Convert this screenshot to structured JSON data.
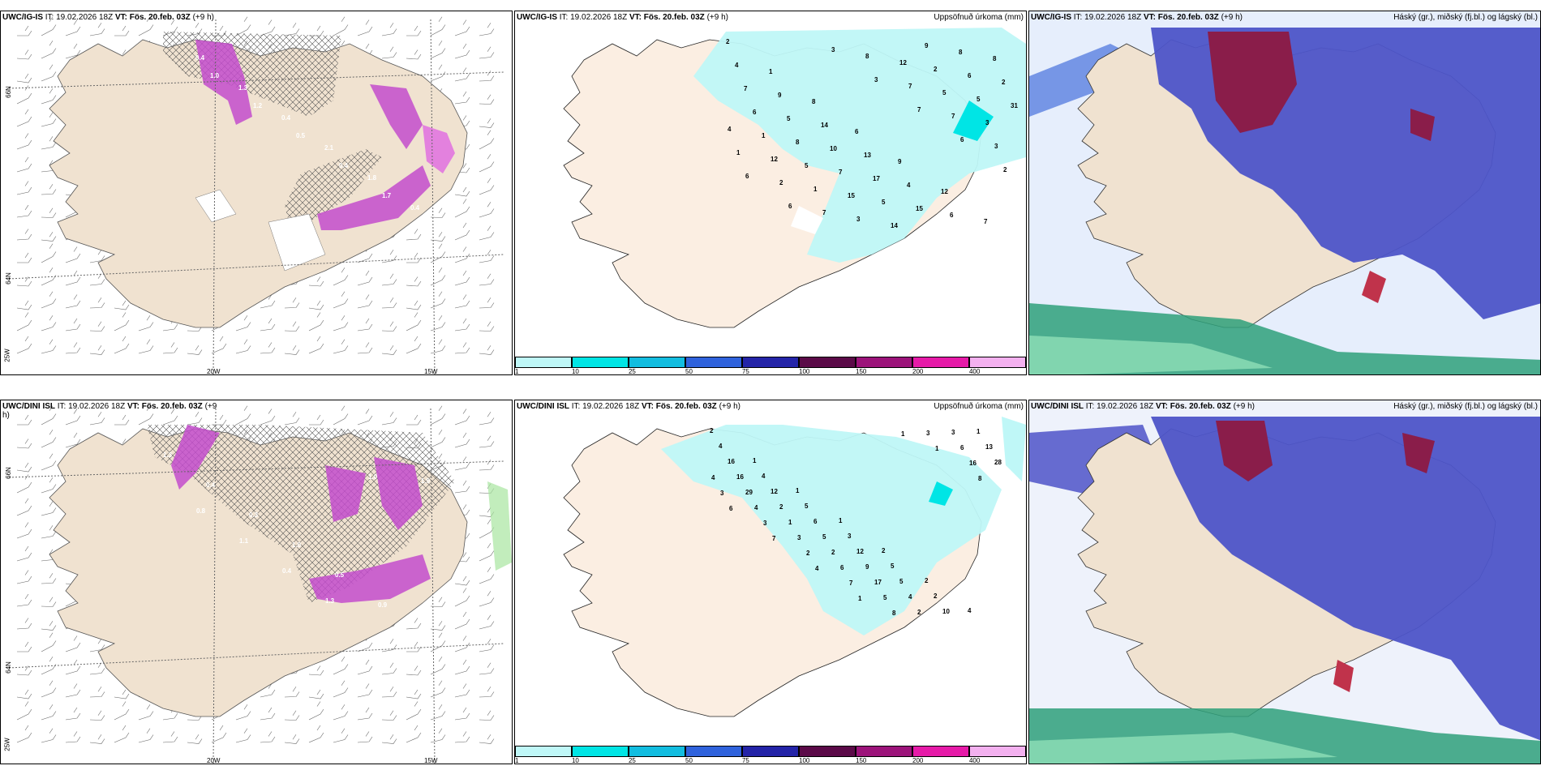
{
  "panels": {
    "a": {
      "model": "UWC/IG-IS",
      "it_label": "IT:",
      "it": "19.02.2026 18Z",
      "vt_label": "VT:",
      "vt": "Fös. 20.feb. 03Z",
      "lead": "(+9 h)"
    },
    "b": {
      "model": "UWC/IG-IS",
      "it_label": "IT:",
      "it": "19.02.2026 18Z",
      "vt_label": "VT:",
      "vt": "Fös. 20.feb. 03Z",
      "lead": "(+9 h)",
      "right": "Uppsöfnuð úrkoma (mm)"
    },
    "c": {
      "model": "UWC/IG-IS",
      "it_label": "IT:",
      "it": "19.02.2026 18Z",
      "vt_label": "VT:",
      "vt": "Fös. 20.feb. 03Z",
      "lead": "(+9 h)",
      "right": "Háský (gr.), miðský (fj.bl.) og lágský (bl.)"
    },
    "d": {
      "model": "UWC/DINI ISL",
      "it_label": "IT:",
      "it": "19.02.2026 18Z",
      "vt_label": "VT:",
      "vt": "Fös. 20.feb. 03Z",
      "lead": "(+9",
      "lead2": "h)"
    },
    "e": {
      "model": "UWC/DINI ISL",
      "it_label": "IT:",
      "it": "19.02.2026 18Z",
      "vt_label": "VT:",
      "vt": "Fös. 20.feb. 03Z",
      "lead": "(+9 h)",
      "right": "Uppsöfnuð úrkoma (mm)"
    },
    "f": {
      "model": "UWC/DINI ISL",
      "it_label": "IT:",
      "it": "19.02.2026 18Z",
      "vt_label": "VT:",
      "vt": "Fös. 20.feb. 03Z",
      "lead": "(+9 h)",
      "right": "Háský (gr.), miðský (fj.bl.) og lágský (bl.)"
    }
  },
  "axes": {
    "lat66": "66N",
    "lat64": "64N",
    "lon20": "20W",
    "lon15": "15W",
    "lon25": "25W"
  },
  "colorbar": {
    "ticks": [
      "1",
      "10",
      "25",
      "50",
      "75",
      "100",
      "150",
      "200",
      "400"
    ],
    "colors": [
      "#bff7f7",
      "#00e5e5",
      "#12bde0",
      "#2f62dc",
      "#2424a8",
      "#5b0a48",
      "#9c137a",
      "#e61aa8",
      "#f3b0ef"
    ]
  },
  "precip_top": [
    "2",
    "1",
    "8",
    "6",
    "9",
    "12",
    "7",
    "4",
    "9",
    "14",
    "13",
    "4",
    "6",
    "8",
    "7",
    "5",
    "10",
    "17",
    "15",
    "8",
    "2",
    "6",
    "8",
    "7",
    "5",
    "9",
    "6",
    "31",
    "1",
    "5",
    "15",
    "14",
    "2",
    "5",
    "4",
    "12",
    "1",
    "3",
    "12",
    "5",
    "3",
    "1",
    "2",
    "7",
    "8",
    "7",
    "7",
    "3",
    "6",
    "6",
    "3",
    "3",
    "7",
    "6",
    "2"
  ],
  "precip_bot": [
    "2",
    "1",
    "1",
    "1",
    "2",
    "2",
    "4",
    "4",
    "4",
    "5",
    "3",
    "5",
    "2",
    "1",
    "16",
    "12",
    "6",
    "12",
    "5",
    "10",
    "13",
    "16",
    "2",
    "5",
    "9",
    "4",
    "3",
    "28",
    "29",
    "1",
    "2",
    "17",
    "2",
    "6",
    "4",
    "4",
    "3",
    "6",
    "5",
    "3",
    "16",
    "3",
    "3",
    "2",
    "7",
    "8",
    "1",
    "8",
    "6",
    "7",
    "4",
    "1",
    "1"
  ],
  "barb_values_a": [
    "0.4",
    "1.3",
    "0.4",
    "2.1",
    "1.8",
    "0.4",
    "1.0",
    "1.2",
    "0.5",
    "0.4",
    "1.7",
    "1.2"
  ],
  "barb_values_d": [
    "1.3",
    "0.4",
    "0.3",
    "1.0",
    "0.5",
    "0.9",
    "1.9",
    "0.8",
    "1.1",
    "0.4",
    "1.3",
    "1.0"
  ]
}
